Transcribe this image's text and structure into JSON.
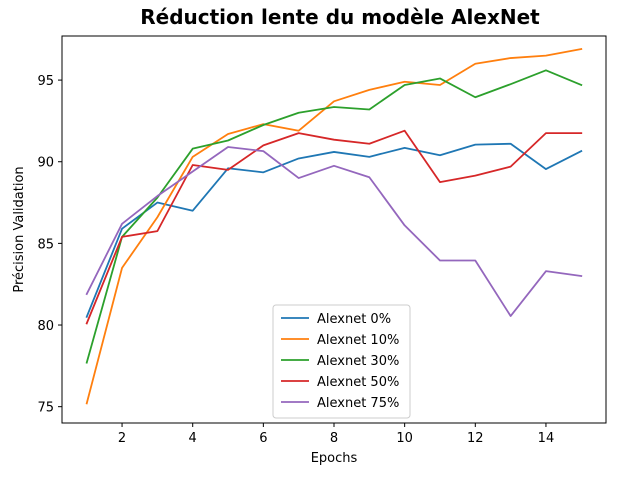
{
  "chart_data": {
    "type": "line",
    "title": "Réduction lente du modèle AlexNet",
    "xlabel": "Epochs",
    "ylabel": "Précision Validation",
    "xlim": [
      0.3,
      15.7
    ],
    "ylim": [
      74.0,
      97.7
    ],
    "xticks": [
      2,
      4,
      6,
      8,
      10,
      12,
      14
    ],
    "yticks": [
      75,
      80,
      85,
      90,
      95
    ],
    "grid": false,
    "legend_position": "lower-center",
    "x": [
      1,
      2,
      3,
      4,
      5,
      6,
      7,
      8,
      9,
      10,
      11,
      12,
      13,
      14,
      15
    ],
    "series": [
      {
        "name": "Alexnet 0%",
        "color": "#1f77b4",
        "values": [
          80.5,
          85.9,
          87.5,
          87.0,
          89.6,
          89.35,
          90.2,
          90.6,
          90.3,
          90.85,
          90.4,
          91.05,
          91.1,
          89.55,
          90.65
        ]
      },
      {
        "name": "Alexnet 10%",
        "color": "#ff7f0e",
        "values": [
          75.2,
          83.5,
          86.6,
          90.3,
          91.7,
          92.3,
          91.9,
          93.7,
          94.4,
          94.9,
          94.7,
          96.0,
          96.35,
          96.5,
          96.9
        ]
      },
      {
        "name": "Alexnet 30%",
        "color": "#2ca02c",
        "values": [
          77.7,
          85.4,
          87.8,
          90.8,
          91.3,
          92.25,
          93.0,
          93.35,
          93.2,
          94.7,
          95.1,
          93.95,
          94.75,
          95.6,
          94.7
        ]
      },
      {
        "name": "Alexnet 50%",
        "color": "#d62728",
        "values": [
          80.1,
          85.4,
          85.75,
          89.8,
          89.5,
          91.0,
          91.75,
          91.35,
          91.1,
          91.9,
          88.75,
          89.15,
          89.7,
          91.75,
          91.75
        ]
      },
      {
        "name": "Alexnet 75%",
        "color": "#9467bd",
        "values": [
          81.9,
          86.2,
          87.9,
          89.4,
          90.9,
          90.65,
          89.0,
          89.75,
          89.05,
          86.1,
          83.95,
          83.95,
          80.55,
          83.3,
          83.0
        ]
      }
    ]
  }
}
